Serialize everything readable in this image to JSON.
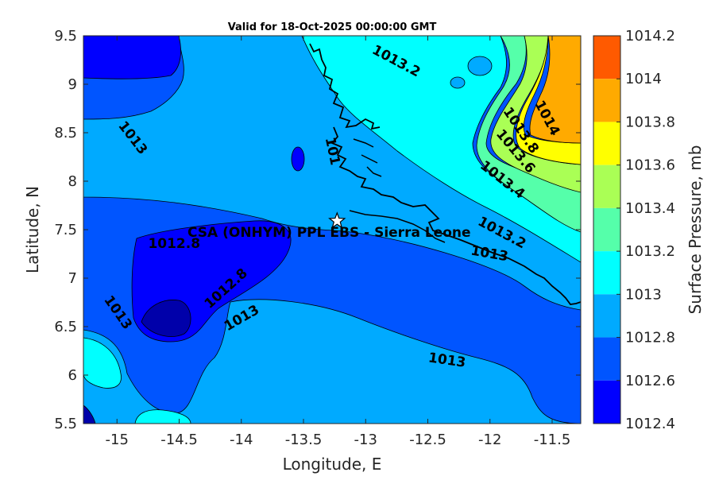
{
  "title": "Valid for 18-Oct-2025 00:00:00 GMT",
  "xlabel": "Longitude, E",
  "ylabel": "Latitude, N",
  "x_ticks": [
    "-15",
    "-14.5",
    "-14",
    "-13.5",
    "-13",
    "-12.5",
    "-12",
    "-11.5"
  ],
  "y_ticks": [
    "9.5",
    "9",
    "8.5",
    "8",
    "7.5",
    "7",
    "6.5",
    "6",
    "5.5"
  ],
  "colorbar": {
    "label": "Surface Pressure, mb",
    "ticks": [
      "1014.2",
      "1014",
      "1013.8",
      "1013.6",
      "1013.4",
      "1013.2",
      "1013",
      "1012.8",
      "1012.6",
      "1012.4"
    ],
    "colors": [
      "#ff5a00",
      "#ffaa00",
      "#ffff00",
      "#aaff55",
      "#55ffaa",
      "#00ffff",
      "#00aaff",
      "#0055ff",
      "#0000ff",
      "#0000aa"
    ]
  },
  "station": {
    "label": "CSA (ONHYM) PPL EBS  - Sierra Leone",
    "lon": -13.23,
    "lat": 7.59
  },
  "contour_labels": [
    {
      "text": "1013.2",
      "lon": -12.77,
      "lat": 9.2
    },
    {
      "text": "1013",
      "lon": -14.9,
      "lat": 8.42
    },
    {
      "text": "1014",
      "lon": -11.57,
      "lat": 8.63
    },
    {
      "text": "1013.8",
      "lon": -11.78,
      "lat": 8.5
    },
    {
      "text": "1013.6",
      "lon": -11.82,
      "lat": 8.28
    },
    {
      "text": "1013.4",
      "lon": -11.92,
      "lat": 7.98
    },
    {
      "text": "1013.2",
      "lon": -11.92,
      "lat": 7.43
    },
    {
      "text": "1013",
      "lon": -12.01,
      "lat": 7.21
    },
    {
      "text": "101",
      "lon": -13.3,
      "lat": 8.3
    },
    {
      "text": "1012.8",
      "lon": -14.54,
      "lat": 7.31
    },
    {
      "text": "1012.8",
      "lon": -14.1,
      "lat": 6.86
    },
    {
      "text": "1013",
      "lon": -13.98,
      "lat": 6.55
    },
    {
      "text": "1013",
      "lon": -15.02,
      "lat": 6.62
    },
    {
      "text": "1013",
      "lon": -12.35,
      "lat": 6.11
    }
  ],
  "map_data": {
    "variable": "Surface Pressure",
    "units": "mb",
    "lon_range": [
      -15.27,
      -11.27
    ],
    "lat_range": [
      5.5,
      9.5
    ],
    "levels": [
      1012.4,
      1012.6,
      1012.8,
      1013,
      1013.2,
      1013.4,
      1013.6,
      1013.8,
      1014,
      1014.2
    ]
  }
}
